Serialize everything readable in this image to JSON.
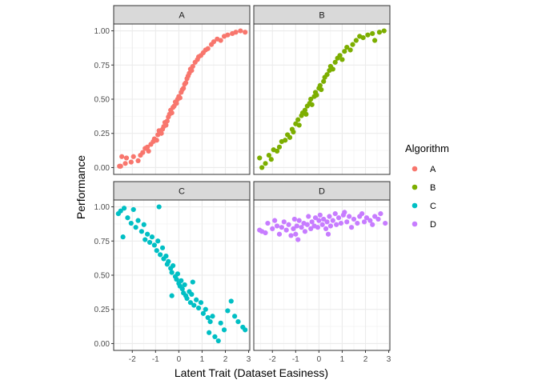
{
  "chart_data": {
    "type": "scatter",
    "layout": "faceted 2x2",
    "xlabel": "Latent Trait (Dataset Easiness)",
    "ylabel": "Performance",
    "xlim": [
      -2.8,
      3.05
    ],
    "ylim": [
      -0.05,
      1.05
    ],
    "x_ticks": [
      -2,
      -1,
      0,
      1,
      2,
      3
    ],
    "y_ticks": [
      0.0,
      0.25,
      0.5,
      0.75,
      1.0
    ],
    "x_tick_labels": [
      "-2",
      "-1",
      "0",
      "1",
      "2",
      "3"
    ],
    "y_tick_labels": [
      "0.00",
      "0.25",
      "0.50",
      "0.75",
      "1.00"
    ],
    "grid": true,
    "legend": {
      "title": "Algorithm",
      "position": "right",
      "entries": [
        "A",
        "B",
        "C",
        "D"
      ]
    },
    "series": [
      {
        "name": "A",
        "color": "#F8766D",
        "points": [
          [
            -2.55,
            0.01
          ],
          [
            -2.5,
            0.01
          ],
          [
            -2.45,
            0.08
          ],
          [
            -2.3,
            0.03
          ],
          [
            -2.25,
            0.07
          ],
          [
            -2.05,
            0.04
          ],
          [
            -1.95,
            0.08
          ],
          [
            -1.75,
            0.05
          ],
          [
            -1.65,
            0.09
          ],
          [
            -1.55,
            0.11
          ],
          [
            -1.45,
            0.14
          ],
          [
            -1.35,
            0.15
          ],
          [
            -1.3,
            0.12
          ],
          [
            -1.2,
            0.17
          ],
          [
            -1.1,
            0.19
          ],
          [
            -1.05,
            0.21
          ],
          [
            -0.95,
            0.2
          ],
          [
            -0.9,
            0.24
          ],
          [
            -0.85,
            0.27
          ],
          [
            -0.75,
            0.25
          ],
          [
            -0.7,
            0.28
          ],
          [
            -0.65,
            0.3
          ],
          [
            -0.6,
            0.33
          ],
          [
            -0.55,
            0.31
          ],
          [
            -0.5,
            0.34
          ],
          [
            -0.45,
            0.37
          ],
          [
            -0.4,
            0.39
          ],
          [
            -0.35,
            0.42
          ],
          [
            -0.3,
            0.4
          ],
          [
            -0.25,
            0.44
          ],
          [
            -0.2,
            0.45
          ],
          [
            -0.15,
            0.48
          ],
          [
            -0.1,
            0.47
          ],
          [
            -0.05,
            0.5
          ],
          [
            0.0,
            0.52
          ],
          [
            0.05,
            0.51
          ],
          [
            0.1,
            0.55
          ],
          [
            0.15,
            0.57
          ],
          [
            0.2,
            0.58
          ],
          [
            0.25,
            0.61
          ],
          [
            0.3,
            0.62
          ],
          [
            0.35,
            0.65
          ],
          [
            0.4,
            0.67
          ],
          [
            0.45,
            0.69
          ],
          [
            0.5,
            0.72
          ],
          [
            0.55,
            0.71
          ],
          [
            0.6,
            0.74
          ],
          [
            0.7,
            0.77
          ],
          [
            0.8,
            0.79
          ],
          [
            0.85,
            0.81
          ],
          [
            0.95,
            0.82
          ],
          [
            1.05,
            0.84
          ],
          [
            1.15,
            0.86
          ],
          [
            1.25,
            0.87
          ],
          [
            1.4,
            0.9
          ],
          [
            1.5,
            0.92
          ],
          [
            1.65,
            0.94
          ],
          [
            1.8,
            0.93
          ],
          [
            1.95,
            0.96
          ],
          [
            2.1,
            0.97
          ],
          [
            2.3,
            0.98
          ],
          [
            2.45,
            0.99
          ],
          [
            2.65,
            1.0
          ],
          [
            2.85,
            0.99
          ]
        ]
      },
      {
        "name": "B",
        "color": "#7CAE00",
        "points": [
          [
            -2.55,
            0.07
          ],
          [
            -2.45,
            0.0
          ],
          [
            -2.3,
            0.03
          ],
          [
            -2.15,
            0.09
          ],
          [
            -2.05,
            0.06
          ],
          [
            -1.95,
            0.13
          ],
          [
            -1.8,
            0.12
          ],
          [
            -1.7,
            0.15
          ],
          [
            -1.6,
            0.19
          ],
          [
            -1.45,
            0.2
          ],
          [
            -1.35,
            0.24
          ],
          [
            -1.25,
            0.22
          ],
          [
            -1.15,
            0.28
          ],
          [
            -1.1,
            0.26
          ],
          [
            -1.0,
            0.32
          ],
          [
            -0.9,
            0.35
          ],
          [
            -0.85,
            0.31
          ],
          [
            -0.75,
            0.38
          ],
          [
            -0.7,
            0.4
          ],
          [
            -0.6,
            0.42
          ],
          [
            -0.55,
            0.39
          ],
          [
            -0.5,
            0.45
          ],
          [
            -0.4,
            0.47
          ],
          [
            -0.35,
            0.5
          ],
          [
            -0.3,
            0.46
          ],
          [
            -0.2,
            0.52
          ],
          [
            -0.15,
            0.55
          ],
          [
            -0.1,
            0.53
          ],
          [
            0.0,
            0.58
          ],
          [
            0.05,
            0.6
          ],
          [
            0.1,
            0.57
          ],
          [
            0.2,
            0.63
          ],
          [
            0.25,
            0.66
          ],
          [
            0.35,
            0.68
          ],
          [
            0.45,
            0.71
          ],
          [
            0.5,
            0.74
          ],
          [
            0.6,
            0.72
          ],
          [
            0.7,
            0.77
          ],
          [
            0.8,
            0.8
          ],
          [
            0.9,
            0.82
          ],
          [
            1.0,
            0.79
          ],
          [
            1.1,
            0.85
          ],
          [
            1.2,
            0.88
          ],
          [
            1.35,
            0.86
          ],
          [
            1.45,
            0.9
          ],
          [
            1.6,
            0.93
          ],
          [
            1.75,
            0.96
          ],
          [
            1.9,
            0.95
          ],
          [
            2.1,
            0.97
          ],
          [
            2.3,
            0.98
          ],
          [
            2.4,
            0.93
          ],
          [
            2.6,
            0.99
          ],
          [
            2.8,
            1.0
          ]
        ]
      },
      {
        "name": "C",
        "color": "#00BFC4",
        "points": [
          [
            -2.6,
            0.95
          ],
          [
            -2.5,
            0.97
          ],
          [
            -2.35,
            0.99
          ],
          [
            -2.4,
            0.78
          ],
          [
            -2.2,
            0.92
          ],
          [
            -2.05,
            0.88
          ],
          [
            -1.95,
            0.98
          ],
          [
            -1.85,
            0.85
          ],
          [
            -1.75,
            0.9
          ],
          [
            -1.6,
            0.82
          ],
          [
            -1.5,
            0.87
          ],
          [
            -1.45,
            0.76
          ],
          [
            -1.35,
            0.8
          ],
          [
            -1.25,
            0.74
          ],
          [
            -1.15,
            0.78
          ],
          [
            -1.05,
            0.72
          ],
          [
            -0.95,
            0.68
          ],
          [
            -0.9,
            0.75
          ],
          [
            -0.85,
            1.0
          ],
          [
            -0.8,
            0.65
          ],
          [
            -0.7,
            0.7
          ],
          [
            -0.65,
            0.62
          ],
          [
            -0.55,
            0.64
          ],
          [
            -0.5,
            0.58
          ],
          [
            -0.45,
            0.6
          ],
          [
            -0.35,
            0.55
          ],
          [
            -0.3,
            0.52
          ],
          [
            -0.25,
            0.57
          ],
          [
            -0.15,
            0.49
          ],
          [
            -0.1,
            0.47
          ],
          [
            -0.05,
            0.51
          ],
          [
            0.0,
            0.44
          ],
          [
            0.05,
            0.42
          ],
          [
            0.1,
            0.46
          ],
          [
            0.15,
            0.4
          ],
          [
            0.2,
            0.37
          ],
          [
            0.25,
            0.43
          ],
          [
            0.3,
            0.35
          ],
          [
            0.35,
            0.33
          ],
          [
            0.45,
            0.38
          ],
          [
            0.5,
            0.3
          ],
          [
            0.55,
            0.36
          ],
          [
            0.65,
            0.28
          ],
          [
            0.75,
            0.32
          ],
          [
            0.85,
            0.26
          ],
          [
            0.95,
            0.3
          ],
          [
            1.05,
            0.22
          ],
          [
            1.15,
            0.25
          ],
          [
            1.25,
            0.19
          ],
          [
            1.35,
            0.16
          ],
          [
            1.45,
            0.2
          ],
          [
            1.55,
            0.05
          ],
          [
            1.7,
            0.02
          ],
          [
            1.8,
            0.15
          ],
          [
            1.95,
            0.1
          ],
          [
            2.1,
            0.24
          ],
          [
            2.25,
            0.31
          ],
          [
            2.4,
            0.2
          ],
          [
            2.55,
            0.16
          ],
          [
            2.75,
            0.12
          ],
          [
            2.85,
            0.1
          ],
          [
            -0.3,
            0.35
          ],
          [
            0.6,
            0.45
          ],
          [
            1.3,
            0.08
          ]
        ]
      },
      {
        "name": "D",
        "color": "#C77CFF",
        "points": [
          [
            -2.55,
            0.83
          ],
          [
            -2.45,
            0.82
          ],
          [
            -2.3,
            0.81
          ],
          [
            -2.2,
            0.88
          ],
          [
            -2.0,
            0.84
          ],
          [
            -1.9,
            0.9
          ],
          [
            -1.8,
            0.86
          ],
          [
            -1.7,
            0.8
          ],
          [
            -1.6,
            0.85
          ],
          [
            -1.5,
            0.89
          ],
          [
            -1.4,
            0.83
          ],
          [
            -1.3,
            0.87
          ],
          [
            -1.2,
            0.79
          ],
          [
            -1.1,
            0.84
          ],
          [
            -1.05,
            0.91
          ],
          [
            -0.95,
            0.86
          ],
          [
            -0.9,
            0.76
          ],
          [
            -0.85,
            0.9
          ],
          [
            -0.75,
            0.85
          ],
          [
            -0.65,
            0.88
          ],
          [
            -0.6,
            0.82
          ],
          [
            -0.5,
            0.87
          ],
          [
            -0.45,
            0.93
          ],
          [
            -0.35,
            0.84
          ],
          [
            -0.3,
            0.89
          ],
          [
            -0.2,
            0.86
          ],
          [
            -0.15,
            0.92
          ],
          [
            -0.05,
            0.85
          ],
          [
            0.0,
            0.9
          ],
          [
            0.05,
            0.94
          ],
          [
            0.15,
            0.87
          ],
          [
            0.2,
            0.91
          ],
          [
            0.3,
            0.84
          ],
          [
            0.35,
            0.89
          ],
          [
            0.45,
            0.93
          ],
          [
            0.5,
            0.86
          ],
          [
            0.6,
            0.9
          ],
          [
            0.7,
            0.95
          ],
          [
            0.75,
            0.87
          ],
          [
            0.85,
            0.92
          ],
          [
            0.95,
            0.88
          ],
          [
            1.05,
            0.94
          ],
          [
            1.1,
            0.96
          ],
          [
            1.2,
            0.89
          ],
          [
            1.3,
            0.93
          ],
          [
            1.4,
            0.85
          ],
          [
            1.5,
            0.91
          ],
          [
            1.65,
            0.88
          ],
          [
            1.75,
            0.93
          ],
          [
            1.85,
            0.95
          ],
          [
            1.95,
            0.89
          ],
          [
            2.05,
            0.92
          ],
          [
            2.2,
            0.9
          ],
          [
            2.3,
            0.87
          ],
          [
            2.4,
            0.93
          ],
          [
            2.55,
            0.91
          ],
          [
            2.65,
            0.95
          ],
          [
            2.85,
            0.88
          ],
          [
            -1.0,
            0.8
          ],
          [
            0.4,
            0.8
          ]
        ]
      }
    ]
  }
}
